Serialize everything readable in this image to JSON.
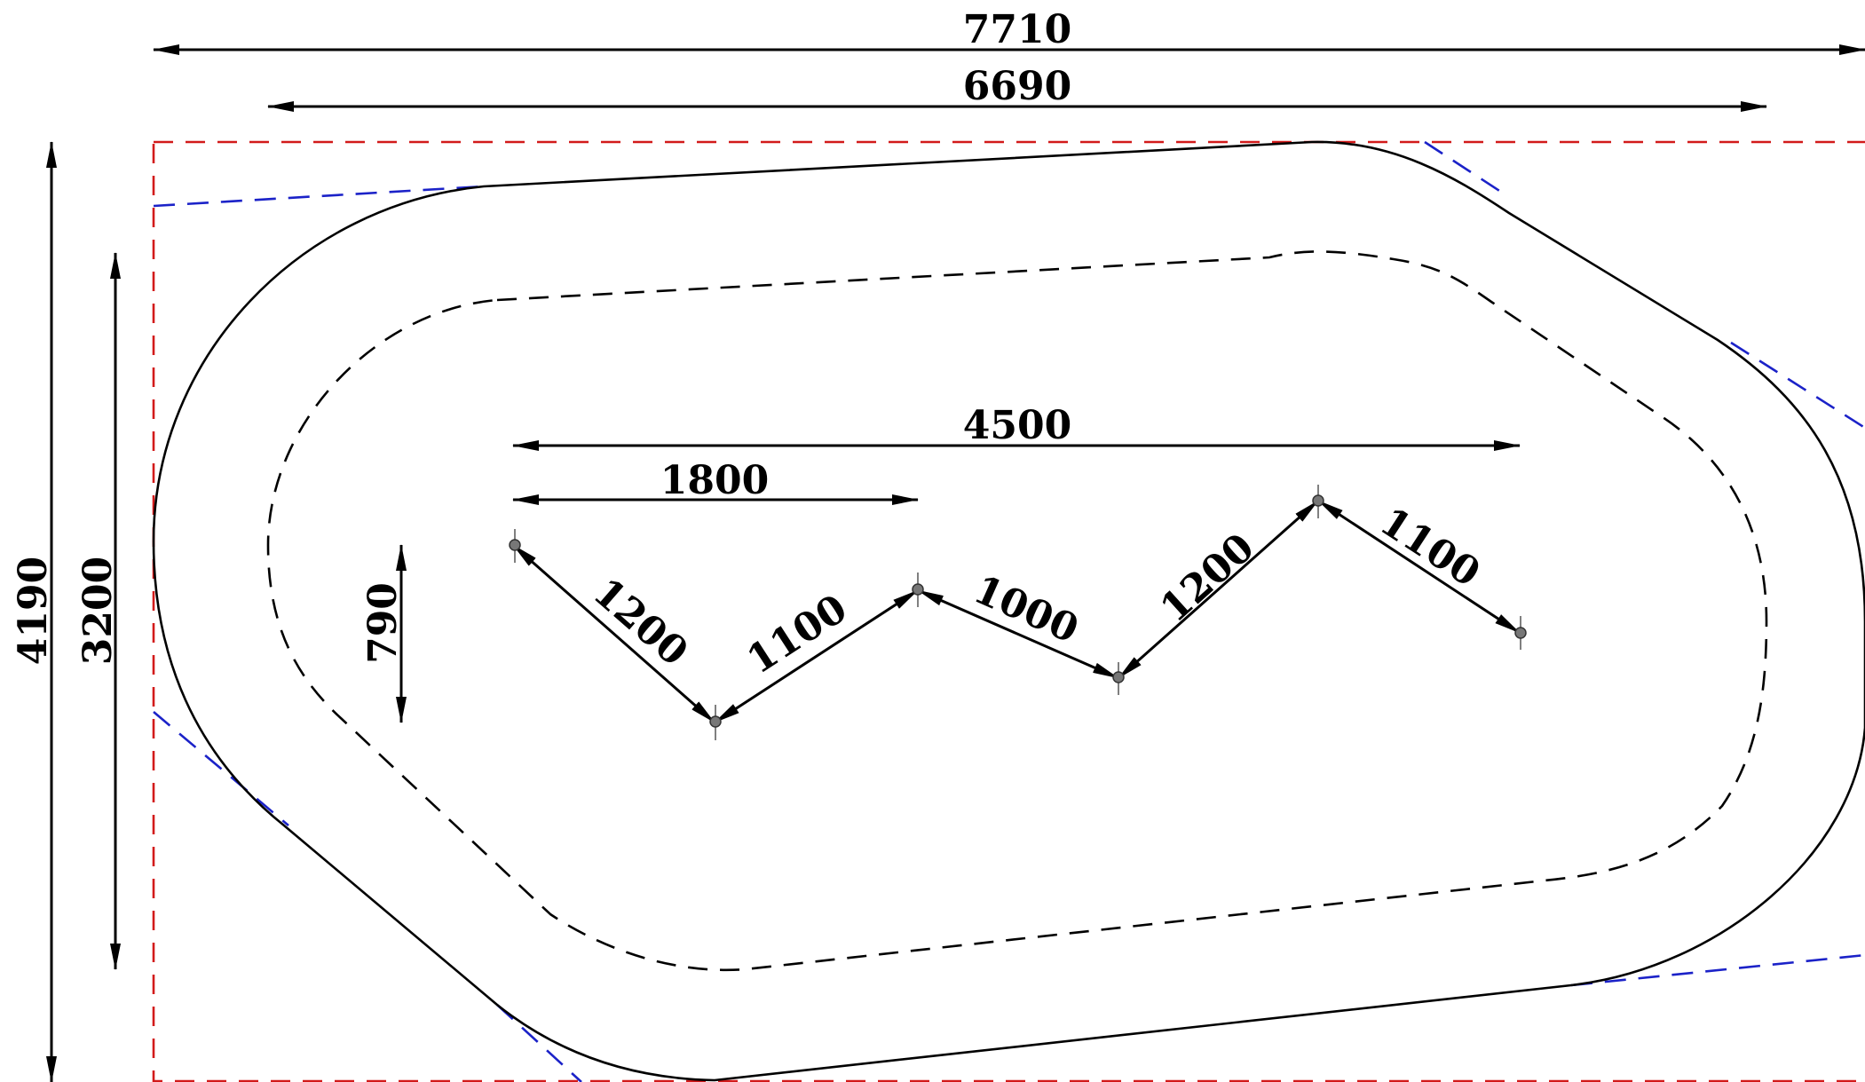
{
  "dimensions": {
    "overall_width": "7710",
    "inner_width": "6690",
    "overall_height": "4190",
    "inner_height": "3200",
    "span": "4500",
    "offset": "1800",
    "amplitude": "790"
  },
  "segments": {
    "seg1": "1200",
    "seg2": "1100",
    "seg3": "1000",
    "seg4": "1200",
    "seg5": "1100"
  },
  "colors": {
    "outline": "#000000",
    "bounding_box": "#d21a1a",
    "tangent_lines": "#1b22c8"
  }
}
